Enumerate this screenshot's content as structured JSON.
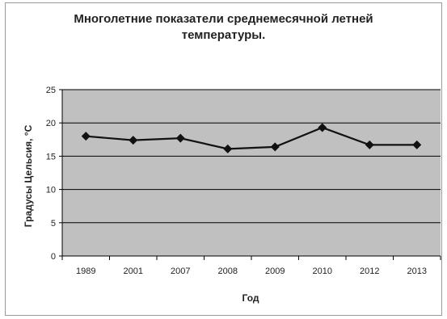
{
  "chart_data": {
    "type": "line",
    "title_line1": "Многолетние показатели среднемесячной летней",
    "title_line2": "температуры.",
    "xlabel": "Год",
    "ylabel": "Градусы Цельсия, °С",
    "categories": [
      "1989",
      "2001",
      "2007",
      "2008",
      "2009",
      "2010",
      "2012",
      "2013"
    ],
    "series": [
      {
        "values": [
          18.0,
          17.4,
          17.7,
          16.1,
          16.4,
          19.3,
          16.7,
          16.7
        ]
      }
    ],
    "ylim": [
      0,
      25
    ],
    "yticks": [
      "0",
      "5",
      "10",
      "15",
      "20",
      "25"
    ],
    "grid": true,
    "legend": "none",
    "plot_background": "#c0c0c0",
    "line_color": "#111111",
    "marker": "diamond"
  }
}
